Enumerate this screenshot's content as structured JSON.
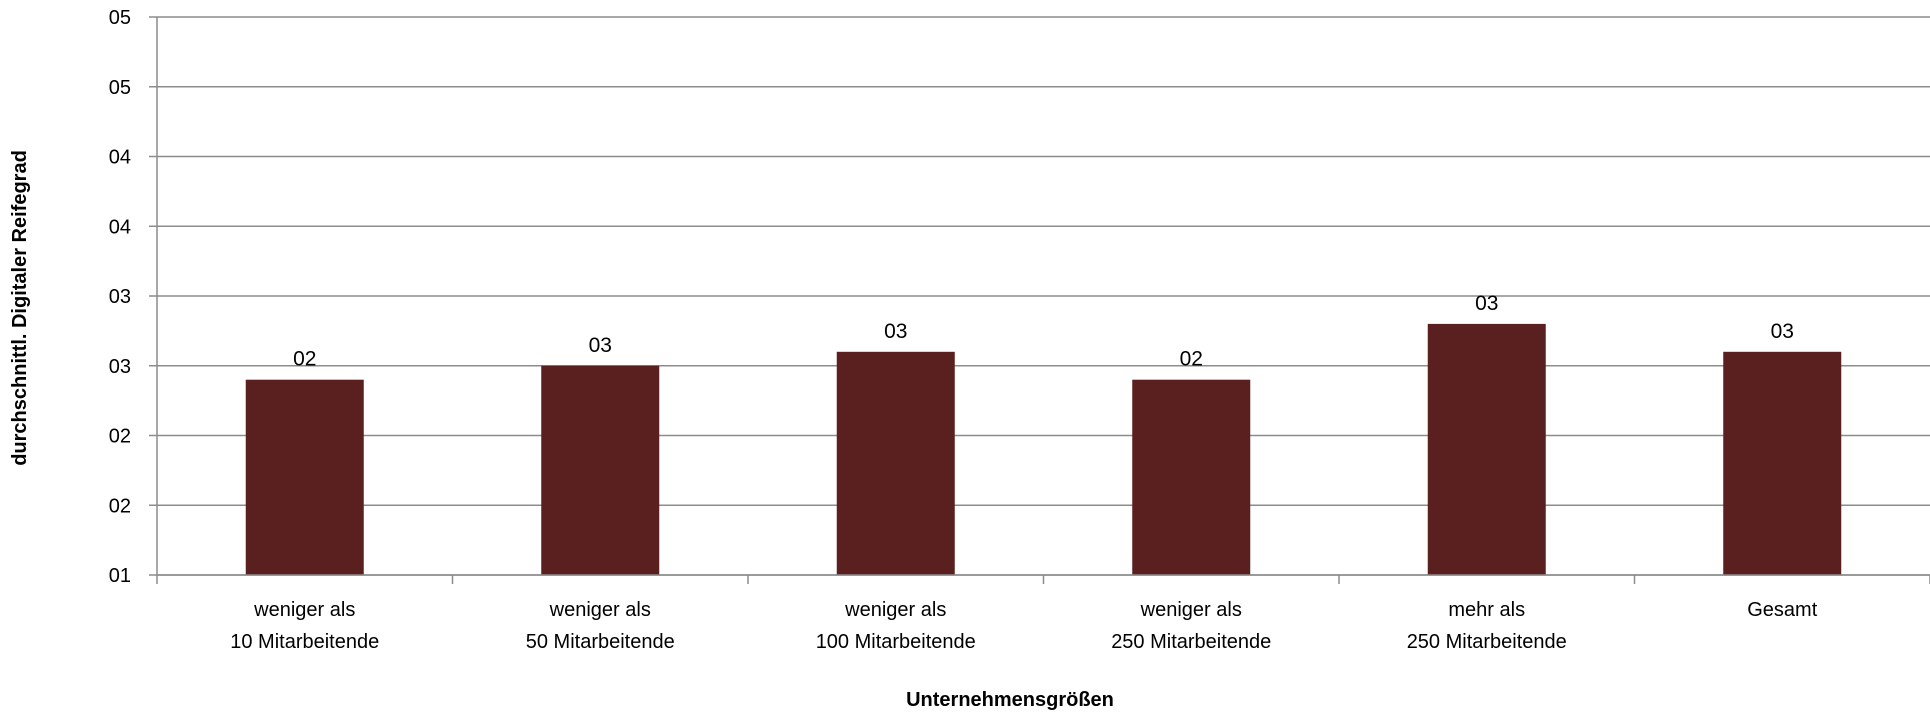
{
  "chart_data": {
    "type": "bar",
    "title": "",
    "xlabel": "Unternehmensgrößen",
    "ylabel": "durchschnittl. Digitaler Reifegrad",
    "categories": [
      [
        "weniger als",
        "10 Mitarbeitende"
      ],
      [
        "weniger als",
        "50 Mitarbeitende"
      ],
      [
        "weniger als",
        "100 Mitarbeitende"
      ],
      [
        "weniger als",
        "250 Mitarbeitende"
      ],
      [
        "mehr als",
        "250 Mitarbeitende"
      ],
      [
        "Gesamt"
      ]
    ],
    "values": [
      2.4,
      2.5,
      2.6,
      2.4,
      2.8,
      2.6
    ],
    "data_labels": [
      "02",
      "03",
      "03",
      "02",
      "03",
      "03"
    ],
    "ylim": [
      1,
      5
    ],
    "yticks": [
      1,
      1.5,
      2,
      2.5,
      3,
      3.5,
      4,
      4.5,
      5
    ],
    "ytick_labels": [
      "01",
      "02",
      "02",
      "03",
      "03",
      "04",
      "04",
      "05",
      "05"
    ],
    "grid": true,
    "legend": "none",
    "colors": {
      "bar": "#5a1f1f",
      "grid": "#8c8c8c",
      "axis": "#8c8c8c"
    }
  }
}
